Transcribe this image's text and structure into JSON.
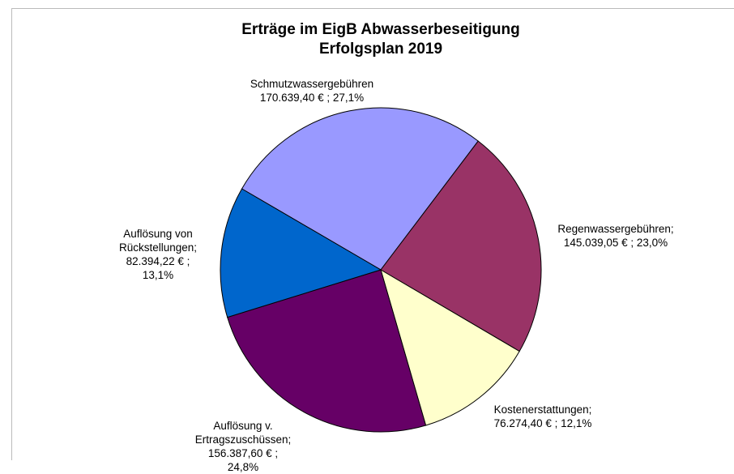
{
  "chart_data": {
    "type": "pie",
    "title": "Erträge im EigB Abwasserbeseitigung",
    "subtitle": "Erfolgsplan 2019",
    "categories": [
      "Schmutzwassergebühren",
      "Regenwassergebühren;",
      "Kostenerstattungen;",
      "Auflösung v. Ertragszuschüssen;",
      "Auflösung von Rückstellungen;"
    ],
    "values": [
      170639.4,
      145039.05,
      76274.4,
      156387.6,
      82394.22
    ],
    "value_labels": [
      "170.639,40 € ; 27,1%",
      "145.039,05 € ; 23,0%",
      "76.274,40 € ; 12,1%",
      "156.387,60 € ; 24,8%",
      "82.394,22 € ; 13,1%"
    ],
    "colors": [
      "#9999ff",
      "#993366",
      "#ffffcc",
      "#660066",
      "#0066cc"
    ]
  }
}
